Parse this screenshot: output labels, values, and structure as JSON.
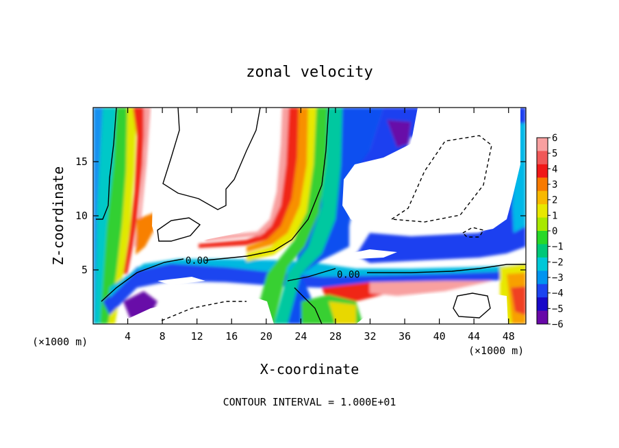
{
  "chart_data": {
    "type": "heatmap",
    "title": "zonal velocity",
    "xlabel": "X-coordinate",
    "ylabel": "Z-coordinate",
    "x_unit_label": "(×1000 m)",
    "y_unit_label": "(×1000 m)",
    "x_range": [
      0,
      50
    ],
    "y_range": [
      0,
      20
    ],
    "x_ticks": [
      "4",
      "8",
      "12",
      "16",
      "20",
      "24",
      "28",
      "32",
      "36",
      "40",
      "44",
      "48"
    ],
    "y_ticks": [
      "5",
      "10",
      "15"
    ],
    "x_tick_values": [
      4,
      8,
      12,
      16,
      20,
      24,
      28,
      32,
      36,
      40,
      44,
      48
    ],
    "y_tick_values": [
      5,
      10,
      15
    ],
    "colorbar": {
      "levels": [
        "6",
        "5",
        "4",
        "3",
        "2",
        "1",
        "0",
        "−1",
        "−2",
        "−3",
        "−4",
        "−5",
        "−6"
      ],
      "level_values": [
        6,
        5,
        4,
        3,
        2,
        1,
        0,
        -1,
        -2,
        -3,
        -4,
        -5,
        -6
      ],
      "colors": [
        "#f8a0a0",
        "#f05858",
        "#f01818",
        "#f87a00",
        "#f8b800",
        "#e8e800",
        "#a8e800",
        "#28d828",
        "#00c878",
        "#00c8d8",
        "#0094f0",
        "#1c44f0",
        "#1808c8",
        "#6808a8"
      ]
    },
    "contour_labels": [
      {
        "text": "0.00",
        "x": 12.0,
        "y": 5.9
      },
      {
        "text": "0.00",
        "x": 29.5,
        "y": 4.6
      }
    ],
    "footer": "CONTOUR INTERVAL = 1.000E+01"
  }
}
